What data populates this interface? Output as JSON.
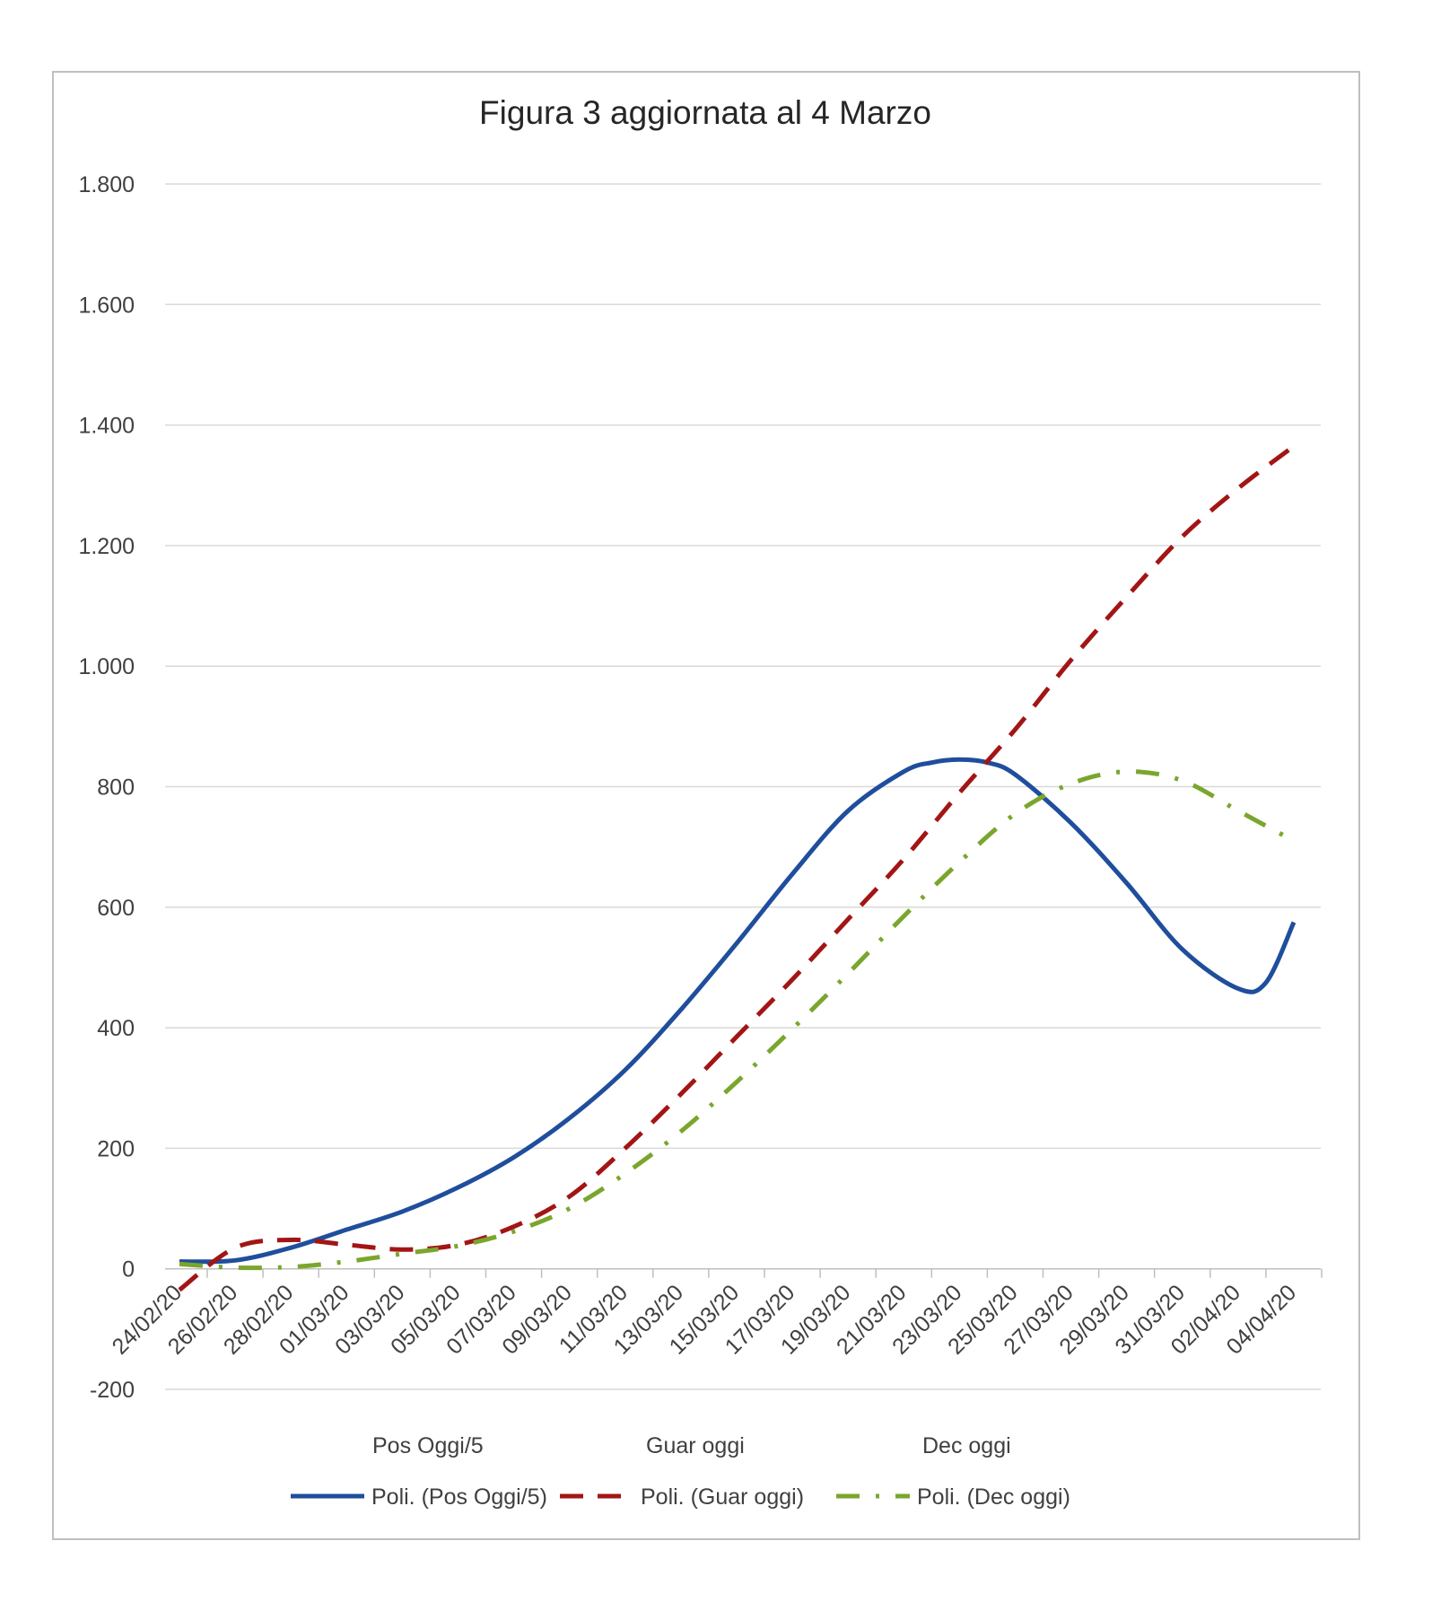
{
  "chart_data": {
    "type": "line",
    "title": "Figura 3 aggiornata al 4 Marzo",
    "xlabel": "",
    "ylabel": "",
    "ylim": [
      -200,
      1800
    ],
    "yticks": [
      -200,
      0,
      200,
      400,
      600,
      800,
      1000,
      1200,
      1400,
      1600,
      1800
    ],
    "ytick_labels": [
      "-200",
      "0",
      "200",
      "400",
      "600",
      "800",
      "1.000",
      "1.200",
      "1.400",
      "1.600",
      "1.800"
    ],
    "x_start": "24/02/20",
    "x_end": "04/04/20",
    "x_tick_labels": [
      "24/02/20",
      "26/02/20",
      "28/02/20",
      "01/03/20",
      "03/03/20",
      "05/03/20",
      "07/03/20",
      "09/03/20",
      "11/03/20",
      "13/03/20",
      "15/03/20",
      "17/03/20",
      "19/03/20",
      "21/03/20",
      "23/03/20",
      "25/03/20",
      "27/03/20",
      "29/03/20",
      "31/03/20",
      "02/04/20",
      "04/04/20"
    ],
    "grid": true,
    "legend_placement": "bottom",
    "legend_top_labels": [
      "Pos Oggi/5",
      "Guar oggi",
      "Dec oggi"
    ],
    "series": [
      {
        "name": "Poli. (Pos Oggi/5)",
        "color": "#1f4e9c",
        "style": "solid",
        "x": [
          "24/02/20",
          "26/02/20",
          "28/02/20",
          "01/03/20",
          "03/03/20",
          "05/03/20",
          "07/03/20",
          "09/03/20",
          "11/03/20",
          "13/03/20",
          "15/03/20",
          "17/03/20",
          "19/03/20",
          "21/03/20",
          "22/03/20",
          "23/03/20",
          "24/03/20",
          "25/03/20",
          "27/03/20",
          "29/03/20",
          "31/03/20",
          "02/04/20",
          "03/04/20",
          "04/04/20"
        ],
        "y": [
          12,
          14,
          35,
          65,
          95,
          135,
          185,
          250,
          330,
          430,
          540,
          655,
          760,
          825,
          840,
          845,
          840,
          820,
          740,
          640,
          530,
          465,
          475,
          575
        ]
      },
      {
        "name": "Poli. (Guar oggi)",
        "color": "#a31515",
        "style": "dashed",
        "x": [
          "24/02/20",
          "26/02/20",
          "28/02/20",
          "01/03/20",
          "03/03/20",
          "05/03/20",
          "07/03/20",
          "09/03/20",
          "11/03/20",
          "13/03/20",
          "15/03/20",
          "17/03/20",
          "19/03/20",
          "21/03/20",
          "23/03/20",
          "25/03/20",
          "27/03/20",
          "29/03/20",
          "31/03/20",
          "02/04/20",
          "04/04/20"
        ],
        "y": [
          -35,
          35,
          48,
          40,
          32,
          40,
          70,
          120,
          200,
          290,
          385,
          480,
          580,
          680,
          790,
          895,
          1010,
          1115,
          1215,
          1295,
          1365
        ]
      },
      {
        "name": "Poli. (Dec oggi)",
        "color": "#7aa62d",
        "style": "dashdot",
        "x": [
          "24/02/20",
          "26/02/20",
          "28/02/20",
          "01/03/20",
          "03/03/20",
          "05/03/20",
          "07/03/20",
          "09/03/20",
          "11/03/20",
          "13/03/20",
          "15/03/20",
          "17/03/20",
          "19/03/20",
          "21/03/20",
          "23/03/20",
          "25/03/20",
          "27/03/20",
          "29/03/20",
          "31/03/20",
          "02/04/20",
          "04/04/20"
        ],
        "y": [
          8,
          2,
          3,
          12,
          25,
          38,
          62,
          100,
          158,
          228,
          310,
          398,
          490,
          585,
          675,
          755,
          805,
          825,
          810,
          760,
          710
        ]
      }
    ]
  }
}
